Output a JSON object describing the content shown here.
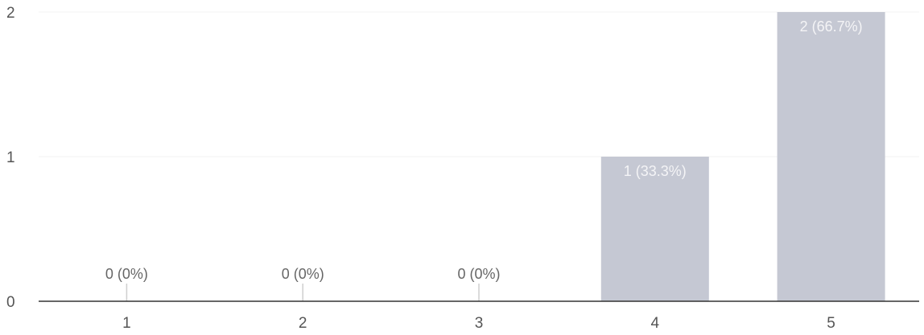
{
  "chart_data": {
    "type": "bar",
    "categories": [
      "1",
      "2",
      "3",
      "4",
      "5"
    ],
    "values": [
      0,
      0,
      0,
      1,
      2
    ],
    "data_labels": [
      "0 (0%)",
      "0 (0%)",
      "0 (0%)",
      "1 (33.3%)",
      "2 (66.7%)"
    ],
    "y_ticks": [
      "0",
      "1",
      "2"
    ],
    "ylim": [
      0,
      2
    ],
    "title": "",
    "xlabel": "",
    "ylabel": "",
    "grid": true,
    "legend": "none",
    "colors": {
      "bar": "#c5c8d3",
      "axis": "#333333",
      "grid": "#f3f3f3",
      "text": "#555555"
    }
  }
}
